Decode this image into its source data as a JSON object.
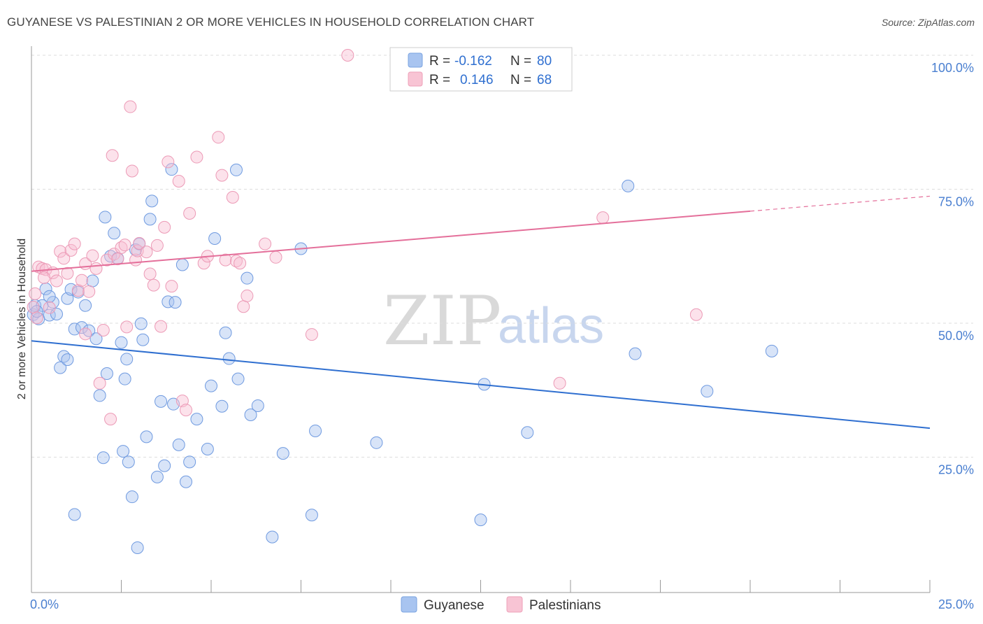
{
  "header": {
    "title": "GUYANESE VS PALESTINIAN 2 OR MORE VEHICLES IN HOUSEHOLD CORRELATION CHART",
    "source": "Source: ZipAtlas.com"
  },
  "watermark": {
    "zip": "ZIP",
    "atlas": "atlas"
  },
  "legend": {
    "rows": [
      {
        "r_label": "R =",
        "r_value": "-0.162",
        "n_label": "N =",
        "n_value": "80"
      },
      {
        "r_label": "R =",
        "r_value": "0.146",
        "n_label": "N =",
        "n_value": "68"
      }
    ]
  },
  "bottom_legend": [
    "Guyanese",
    "Palestinians"
  ],
  "chart_data": {
    "type": "scatter",
    "title": "GUYANESE VS PALESTINIAN 2 OR MORE VEHICLES IN HOUSEHOLD CORRELATION CHART",
    "xlabel": "",
    "ylabel": "2 or more Vehicles in Household",
    "xlim": [
      0,
      25
    ],
    "ylim": [
      0,
      100
    ],
    "x_tick_labels": [
      "0.0%",
      "25.0%"
    ],
    "y_ticks": [
      25,
      50,
      75,
      100
    ],
    "y_tick_labels": [
      "25.0%",
      "50.0%",
      "75.0%",
      "100.0%"
    ],
    "grid": true,
    "legend_position": "top-center",
    "colors": {
      "guyanese": "#a8c4f0",
      "guyanese_line": "#2f6fd0",
      "palestinians": "#f5b5c8",
      "palestinians_line": "#e46f9a"
    },
    "series": [
      {
        "name": "Guyanese",
        "r": -0.162,
        "n": 80,
        "trend": {
          "x": [
            0,
            25
          ],
          "y": [
            46.7,
            30.4
          ]
        },
        "points": [
          [
            0.05,
            51.6
          ],
          [
            0.1,
            53.3
          ],
          [
            0.2,
            50.8
          ],
          [
            0.3,
            53.3
          ],
          [
            0.4,
            56.4
          ],
          [
            0.5,
            51.5
          ],
          [
            0.6,
            53.9
          ],
          [
            0.7,
            51.7
          ],
          [
            0.8,
            41.7
          ],
          [
            0.9,
            43.8
          ],
          [
            1.0,
            54.6
          ],
          [
            1.0,
            43.2
          ],
          [
            1.1,
            56.3
          ],
          [
            1.2,
            48.9
          ],
          [
            1.3,
            55.8
          ],
          [
            1.4,
            49.2
          ],
          [
            1.5,
            53.3
          ],
          [
            1.6,
            48.6
          ],
          [
            1.7,
            57.9
          ],
          [
            1.8,
            47.1
          ],
          [
            1.9,
            36.5
          ],
          [
            2.0,
            24.9
          ],
          [
            2.05,
            69.8
          ],
          [
            2.1,
            40.6
          ],
          [
            2.2,
            62.5
          ],
          [
            2.3,
            66.8
          ],
          [
            2.4,
            62.1
          ],
          [
            2.5,
            46.4
          ],
          [
            2.55,
            26.1
          ],
          [
            2.6,
            39.6
          ],
          [
            2.65,
            43.3
          ],
          [
            2.7,
            24.1
          ],
          [
            2.8,
            17.6
          ],
          [
            2.9,
            63.7
          ],
          [
            2.95,
            8.1
          ],
          [
            3.0,
            64.8
          ],
          [
            3.05,
            49.9
          ],
          [
            3.1,
            46.9
          ],
          [
            3.2,
            28.8
          ],
          [
            3.3,
            69.4
          ],
          [
            3.35,
            72.8
          ],
          [
            3.5,
            21.3
          ],
          [
            3.6,
            35.4
          ],
          [
            3.7,
            23.4
          ],
          [
            3.8,
            54.0
          ],
          [
            3.9,
            78.7
          ],
          [
            3.95,
            34.9
          ],
          [
            4.0,
            53.9
          ],
          [
            4.1,
            27.3
          ],
          [
            4.2,
            60.9
          ],
          [
            4.3,
            20.4
          ],
          [
            4.4,
            24.1
          ],
          [
            4.6,
            32.1
          ],
          [
            4.9,
            26.5
          ],
          [
            5.0,
            38.3
          ],
          [
            5.1,
            65.8
          ],
          [
            5.3,
            34.5
          ],
          [
            5.4,
            48.2
          ],
          [
            5.5,
            43.4
          ],
          [
            5.7,
            78.6
          ],
          [
            5.75,
            39.6
          ],
          [
            6.0,
            58.4
          ],
          [
            6.1,
            32.9
          ],
          [
            6.3,
            34.6
          ],
          [
            6.7,
            10.1
          ],
          [
            7.0,
            25.7
          ],
          [
            7.5,
            63.9
          ],
          [
            7.8,
            14.2
          ],
          [
            7.9,
            29.9
          ],
          [
            9.6,
            27.7
          ],
          [
            12.5,
            13.3
          ],
          [
            12.6,
            38.6
          ],
          [
            13.8,
            29.6
          ],
          [
            16.6,
            75.6
          ],
          [
            16.8,
            44.3
          ],
          [
            18.8,
            37.3
          ],
          [
            20.6,
            44.8
          ],
          [
            0.5,
            55.0
          ],
          [
            1.2,
            14.3
          ],
          [
            0.15,
            52.2
          ]
        ]
      },
      {
        "name": "Palestinians",
        "r": 0.146,
        "n": 68,
        "trend": {
          "x": [
            0,
            20
          ],
          "y": [
            59.7,
            70.9
          ]
        },
        "trend_dashed": {
          "x": [
            20,
            25
          ],
          "y": [
            70.9,
            73.7
          ]
        },
        "points": [
          [
            0.1,
            55.5
          ],
          [
            0.2,
            60.5
          ],
          [
            0.3,
            60.2
          ],
          [
            0.4,
            60.0
          ],
          [
            0.5,
            52.9
          ],
          [
            0.6,
            59.4
          ],
          [
            0.7,
            57.9
          ],
          [
            0.8,
            63.4
          ],
          [
            0.9,
            62.1
          ],
          [
            1.0,
            59.3
          ],
          [
            1.1,
            63.6
          ],
          [
            1.2,
            64.8
          ],
          [
            1.3,
            56.1
          ],
          [
            1.4,
            58.0
          ],
          [
            1.5,
            61.1
          ],
          [
            1.6,
            55.9
          ],
          [
            1.7,
            62.6
          ],
          [
            1.8,
            60.2
          ],
          [
            1.9,
            38.8
          ],
          [
            2.0,
            48.7
          ],
          [
            2.1,
            61.8
          ],
          [
            2.2,
            32.1
          ],
          [
            2.25,
            81.3
          ],
          [
            2.3,
            62.9
          ],
          [
            2.4,
            62.0
          ],
          [
            2.5,
            64.1
          ],
          [
            2.6,
            64.6
          ],
          [
            2.65,
            49.3
          ],
          [
            2.75,
            90.4
          ],
          [
            2.8,
            78.4
          ],
          [
            2.9,
            61.8
          ],
          [
            2.95,
            63.5
          ],
          [
            3.0,
            64.9
          ],
          [
            3.2,
            63.3
          ],
          [
            3.3,
            59.2
          ],
          [
            3.4,
            57.1
          ],
          [
            3.5,
            64.5
          ],
          [
            3.6,
            49.4
          ],
          [
            3.7,
            67.9
          ],
          [
            3.8,
            80.1
          ],
          [
            3.9,
            56.9
          ],
          [
            4.1,
            76.5
          ],
          [
            4.2,
            35.5
          ],
          [
            4.3,
            33.8
          ],
          [
            4.4,
            70.5
          ],
          [
            4.6,
            81.0
          ],
          [
            4.8,
            61.2
          ],
          [
            4.9,
            62.5
          ],
          [
            5.2,
            84.7
          ],
          [
            5.3,
            77.6
          ],
          [
            5.4,
            61.8
          ],
          [
            5.6,
            73.5
          ],
          [
            5.7,
            61.6
          ],
          [
            5.8,
            61.2
          ],
          [
            5.9,
            53.1
          ],
          [
            6.0,
            55.1
          ],
          [
            6.5,
            64.8
          ],
          [
            6.8,
            62.3
          ],
          [
            7.8,
            47.9
          ],
          [
            8.8,
            100.0
          ],
          [
            11.8,
            100.0
          ],
          [
            0.05,
            53.0
          ],
          [
            0.15,
            51.0
          ],
          [
            14.7,
            38.8
          ],
          [
            15.9,
            69.7
          ],
          [
            18.5,
            51.6
          ],
          [
            1.5,
            48.0
          ],
          [
            0.35,
            58.5
          ]
        ]
      }
    ]
  }
}
